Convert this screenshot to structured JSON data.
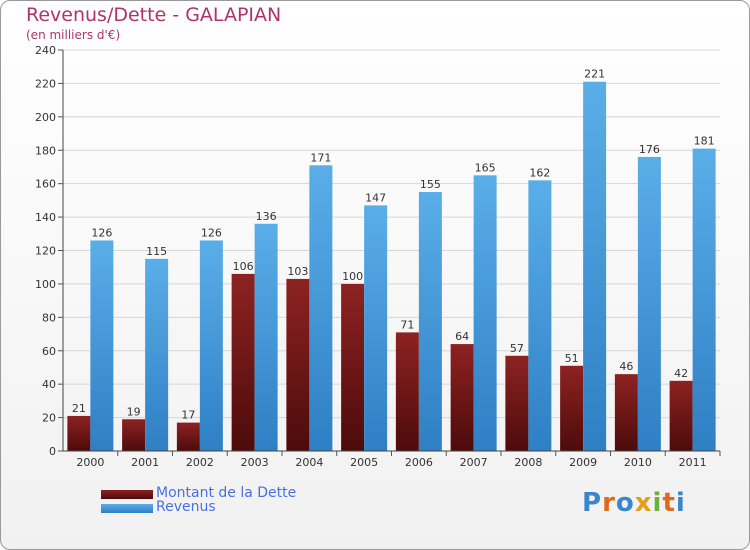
{
  "chart_data": {
    "type": "bar",
    "title": "Revenus/Dette - GALAPIAN",
    "subtitle": "(en milliers d'€)",
    "categories": [
      "2000",
      "2001",
      "2002",
      "2003",
      "2004",
      "2005",
      "2006",
      "2007",
      "2008",
      "2009",
      "2010",
      "2011"
    ],
    "series": [
      {
        "name": "Montant de la Dette",
        "color": "#7a1a1a",
        "values": [
          21,
          19,
          17,
          106,
          103,
          100,
          71,
          64,
          57,
          51,
          46,
          42
        ]
      },
      {
        "name": "Revenus",
        "color": "#4fa3e0",
        "values": [
          126,
          115,
          126,
          136,
          171,
          147,
          155,
          165,
          162,
          221,
          176,
          181
        ]
      }
    ],
    "ylim": [
      0,
      240
    ],
    "yticks": [
      0,
      20,
      40,
      60,
      80,
      100,
      120,
      140,
      160,
      180,
      200,
      220,
      240
    ],
    "xlabel": "",
    "ylabel": "",
    "legend_position": "bottom-left"
  },
  "logo": {
    "text": "Proxiti"
  }
}
